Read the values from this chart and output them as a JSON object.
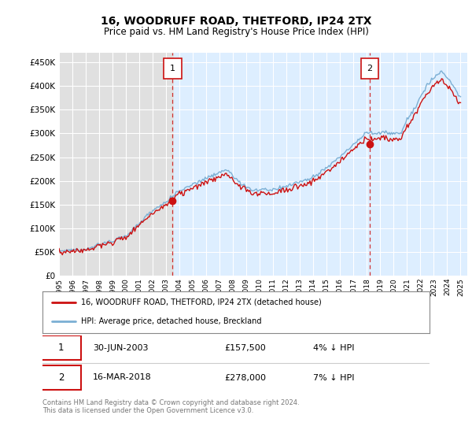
{
  "title": "16, WOODRUFF ROAD, THETFORD, IP24 2TX",
  "subtitle": "Price paid vs. HM Land Registry's House Price Index (HPI)",
  "ylim": [
    0,
    470000
  ],
  "yticks": [
    0,
    50000,
    100000,
    150000,
    200000,
    250000,
    300000,
    350000,
    400000,
    450000
  ],
  "ytick_labels": [
    "£0",
    "£50K",
    "£100K",
    "£150K",
    "£200K",
    "£250K",
    "£300K",
    "£350K",
    "£400K",
    "£450K"
  ],
  "hpi_color": "#7bafd4",
  "price_color": "#cc1111",
  "marker1_date": 2003.49,
  "marker1_price": 157500,
  "marker1_label": "30-JUN-2003",
  "marker1_value": "£157,500",
  "marker1_pct": "4% ↓ HPI",
  "marker2_date": 2018.21,
  "marker2_price": 278000,
  "marker2_label": "16-MAR-2018",
  "marker2_value": "£278,000",
  "marker2_pct": "7% ↓ HPI",
  "legend_line1": "16, WOODRUFF ROAD, THETFORD, IP24 2TX (detached house)",
  "legend_line2": "HPI: Average price, detached house, Breckland",
  "footnote": "Contains HM Land Registry data © Crown copyright and database right 2024.\nThis data is licensed under the Open Government Licence v3.0.",
  "bg_color": "#ffffff",
  "plot_bg_left": "#e8e8e8",
  "plot_bg_right": "#ddeeff",
  "grid_color": "#ffffff",
  "xstart": 1995,
  "xend": 2025.5
}
